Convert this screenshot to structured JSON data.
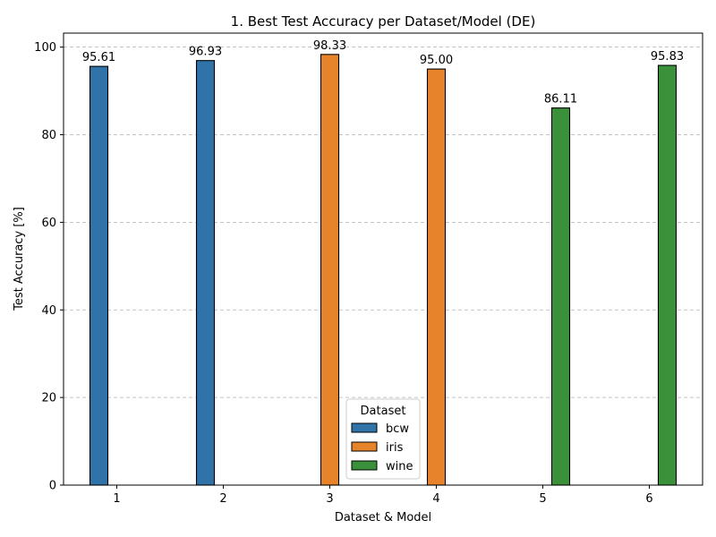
{
  "chart_data": {
    "type": "bar",
    "title": "1. Best Test Accuracy per Dataset/Model (DE)",
    "xlabel": "Dataset & Model",
    "ylabel": "Test Accuracy [%]",
    "categories": [
      "1",
      "2",
      "3",
      "4",
      "5",
      "6"
    ],
    "ylim": [
      0,
      103.2
    ],
    "yticks": [
      0,
      20,
      40,
      60,
      80,
      100
    ],
    "grid": "y-dashed",
    "legend": {
      "title": "Dataset",
      "placement": "bottom-center"
    },
    "series": [
      {
        "name": "bcw",
        "color": "#2f73a8",
        "values": [
          95.61,
          96.93,
          null,
          null,
          null,
          null
        ]
      },
      {
        "name": "iris",
        "color": "#e6832b",
        "values": [
          null,
          null,
          98.33,
          95.0,
          null,
          null
        ]
      },
      {
        "name": "wine",
        "color": "#3a913a",
        "values": [
          null,
          null,
          null,
          null,
          86.11,
          95.83
        ]
      }
    ],
    "data_labels": [
      "95.61",
      "96.93",
      "98.33",
      "95.00",
      "86.11",
      "95.83"
    ]
  }
}
